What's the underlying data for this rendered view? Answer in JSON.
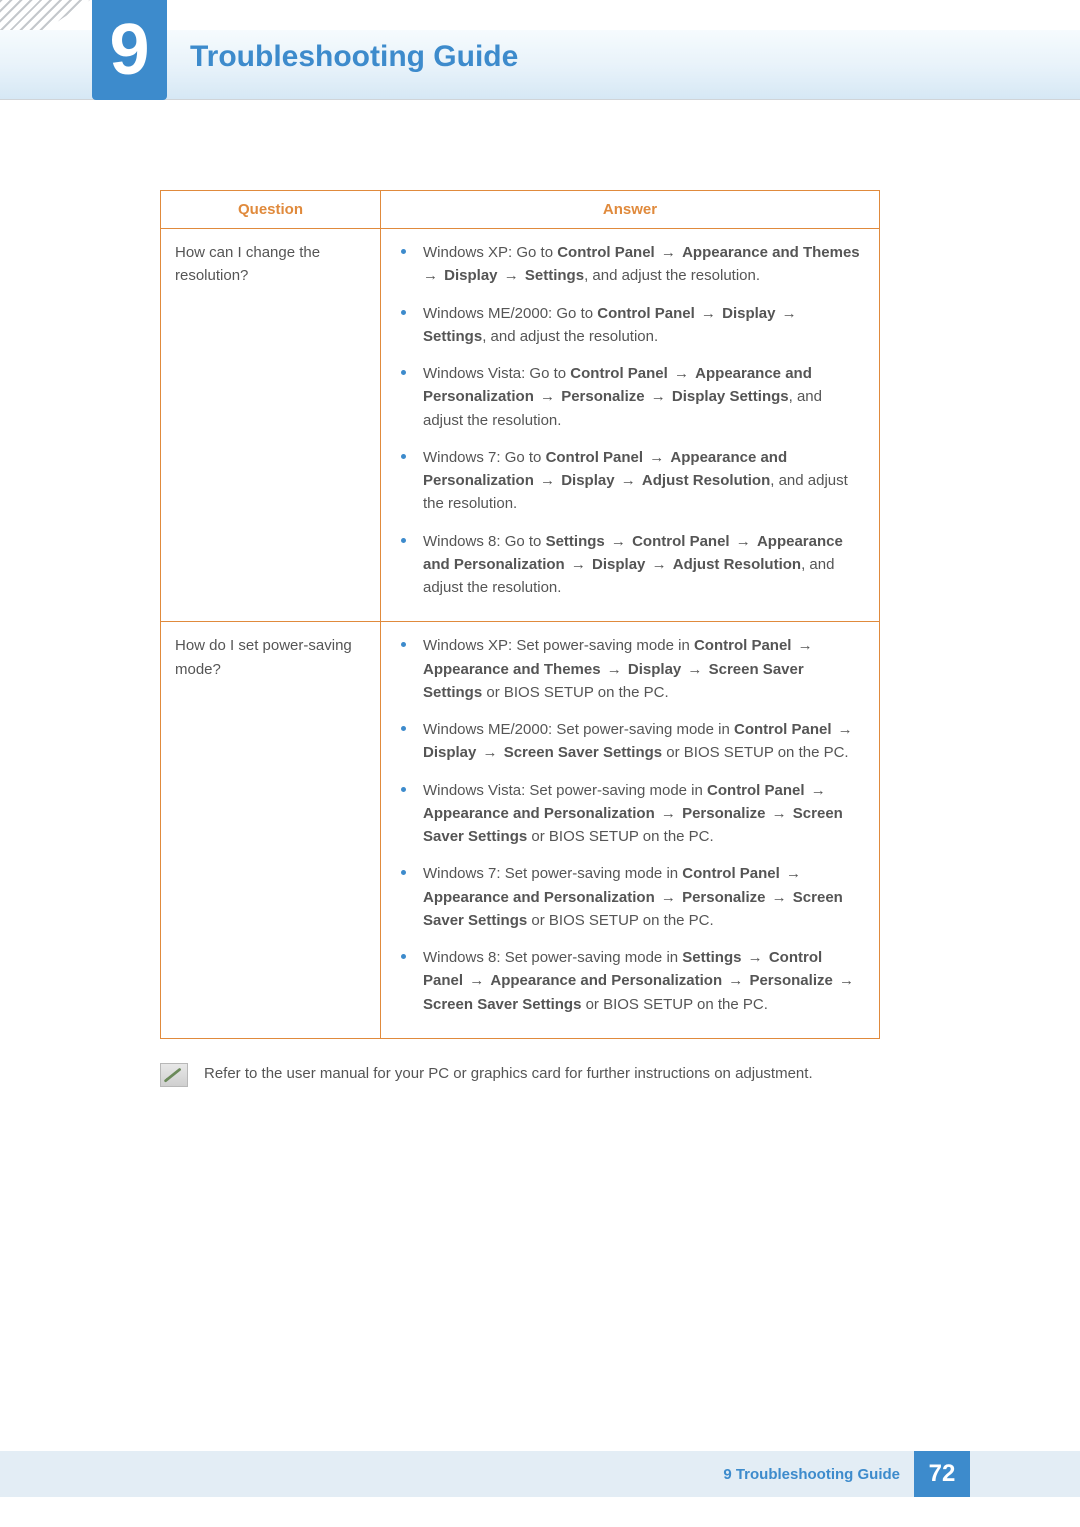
{
  "chapter": {
    "number": "9",
    "title": "Troubleshooting Guide"
  },
  "table": {
    "headers": {
      "question": "Question",
      "answer": "Answer"
    },
    "rows": [
      {
        "question": "How can I change the resolution?",
        "answers": [
          {
            "segments": [
              {
                "t": "Windows XP: Go to "
              },
              {
                "t": "Control Panel",
                "b": true
              },
              {
                "t": " → ",
                "arrow": true
              },
              {
                "t": "Appearance and Themes",
                "b": true
              },
              {
                "t": " → ",
                "arrow": true
              },
              {
                "t": "Display",
                "b": true
              },
              {
                "t": " → ",
                "arrow": true
              },
              {
                "t": "Settings",
                "b": true
              },
              {
                "t": ", and adjust the resolution."
              }
            ]
          },
          {
            "segments": [
              {
                "t": "Windows ME/2000: Go to "
              },
              {
                "t": "Control Panel",
                "b": true
              },
              {
                "t": " → ",
                "arrow": true
              },
              {
                "t": "Display",
                "b": true
              },
              {
                "t": " → ",
                "arrow": true
              },
              {
                "t": "Settings",
                "b": true
              },
              {
                "t": ", and adjust the resolution."
              }
            ]
          },
          {
            "segments": [
              {
                "t": "Windows Vista: Go to "
              },
              {
                "t": "Control Panel",
                "b": true
              },
              {
                "t": " → ",
                "arrow": true
              },
              {
                "t": "Appearance and Personalization",
                "b": true
              },
              {
                "t": " → ",
                "arrow": true
              },
              {
                "t": "Personalize",
                "b": true
              },
              {
                "t": " → ",
                "arrow": true
              },
              {
                "t": "Display Settings",
                "b": true
              },
              {
                "t": ", and adjust the resolution."
              }
            ]
          },
          {
            "segments": [
              {
                "t": "Windows 7: Go to "
              },
              {
                "t": "Control Panel",
                "b": true
              },
              {
                "t": " → ",
                "arrow": true
              },
              {
                "t": "Appearance and Personalization",
                "b": true
              },
              {
                "t": " → ",
                "arrow": true
              },
              {
                "t": "Display",
                "b": true
              },
              {
                "t": " → ",
                "arrow": true
              },
              {
                "t": "Adjust Resolution",
                "b": true
              },
              {
                "t": ", and adjust the resolution."
              }
            ]
          },
          {
            "segments": [
              {
                "t": "Windows 8: Go to "
              },
              {
                "t": "Settings",
                "b": true
              },
              {
                "t": " → ",
                "arrow": true
              },
              {
                "t": "Control Panel",
                "b": true
              },
              {
                "t": " → ",
                "arrow": true
              },
              {
                "t": "Appearance and Personalization",
                "b": true
              },
              {
                "t": " → ",
                "arrow": true
              },
              {
                "t": "Display",
                "b": true
              },
              {
                "t": " → ",
                "arrow": true
              },
              {
                "t": "Adjust Resolution",
                "b": true
              },
              {
                "t": ", and adjust the resolution."
              }
            ]
          }
        ]
      },
      {
        "question": "How do I set power-saving mode?",
        "answers": [
          {
            "segments": [
              {
                "t": "Windows XP: Set power-saving mode in "
              },
              {
                "t": "Control Panel",
                "b": true
              },
              {
                "t": " → ",
                "arrow": true
              },
              {
                "t": "Appearance and Themes",
                "b": true
              },
              {
                "t": " → ",
                "arrow": true
              },
              {
                "t": "Display",
                "b": true
              },
              {
                "t": " → ",
                "arrow": true
              },
              {
                "t": "Screen Saver Settings",
                "b": true
              },
              {
                "t": " or BIOS SETUP on the PC."
              }
            ]
          },
          {
            "segments": [
              {
                "t": "Windows ME/2000: Set power-saving mode in "
              },
              {
                "t": "Control Panel",
                "b": true
              },
              {
                "t": " → ",
                "arrow": true
              },
              {
                "t": "Display",
                "b": true
              },
              {
                "t": " → ",
                "arrow": true
              },
              {
                "t": "Screen Saver Settings",
                "b": true
              },
              {
                "t": " or BIOS SETUP on the PC."
              }
            ]
          },
          {
            "segments": [
              {
                "t": "Windows Vista: Set power-saving mode in "
              },
              {
                "t": "Control Panel",
                "b": true
              },
              {
                "t": " → ",
                "arrow": true
              },
              {
                "t": "Appearance and Personalization",
                "b": true
              },
              {
                "t": " → ",
                "arrow": true
              },
              {
                "t": "Personalize",
                "b": true
              },
              {
                "t": " → ",
                "arrow": true
              },
              {
                "t": "Screen Saver Settings",
                "b": true
              },
              {
                "t": " or BIOS SETUP on the PC."
              }
            ]
          },
          {
            "segments": [
              {
                "t": "Windows 7: Set power-saving mode in "
              },
              {
                "t": "Control Panel",
                "b": true
              },
              {
                "t": " → ",
                "arrow": true
              },
              {
                "t": "Appearance and Personalization",
                "b": true
              },
              {
                "t": " → ",
                "arrow": true
              },
              {
                "t": "Personalize",
                "b": true
              },
              {
                "t": " → ",
                "arrow": true
              },
              {
                "t": "Screen Saver Settings",
                "b": true
              },
              {
                "t": " or BIOS SETUP on the PC."
              }
            ]
          },
          {
            "segments": [
              {
                "t": "Windows 8: Set power-saving mode in "
              },
              {
                "t": "Settings",
                "b": true
              },
              {
                "t": " → ",
                "arrow": true
              },
              {
                "t": "Control Panel",
                "b": true
              },
              {
                "t": " → ",
                "arrow": true
              },
              {
                "t": "Appearance and Personalization",
                "b": true
              },
              {
                "t": " → ",
                "arrow": true
              },
              {
                "t": "Personalize",
                "b": true
              },
              {
                "t": " → ",
                "arrow": true
              },
              {
                "t": "Screen Saver Settings",
                "b": true
              },
              {
                "t": " or BIOS SETUP on the PC."
              }
            ]
          }
        ]
      }
    ]
  },
  "footnote": "Refer to the user manual for your PC or graphics card for further instructions on adjustment.",
  "footer": {
    "label": "9 Troubleshooting Guide",
    "page": "72"
  },
  "colors": {
    "accent_blue": "#3d8bcc",
    "table_border": "#e08a3c",
    "body_text": "#555555",
    "header_grad_top": "#f6fbfe",
    "header_grad_bot": "#d6e8f5",
    "footer_bg": "#e3edf5"
  }
}
